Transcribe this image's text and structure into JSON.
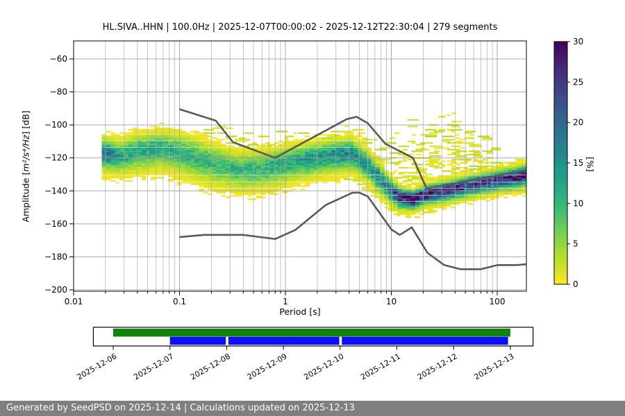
{
  "header": {
    "title": "HL.SIVA..HHN | 100.0Hz | 2025-12-07T00:00:02 - 2025-12-12T22:30:04 | 279 segments"
  },
  "footer": {
    "text": "Generated by SeedPSD on 2025-12-14 | Calculations updated on 2025-12-13",
    "bg": "#7f7f7f",
    "text_color": "#ffffff"
  },
  "axes": {
    "xlabel": "Period [s]",
    "ylabel_prefix": "Amplitude [",
    "ylabel_math": "m²/s⁴/Hz",
    "ylabel_suffix": "] [dB]",
    "x_ticks": [
      {
        "value": 0.01,
        "label": "0.01"
      },
      {
        "value": 0.1,
        "label": "0.1"
      },
      {
        "value": 1,
        "label": "1"
      },
      {
        "value": 10,
        "label": "10"
      },
      {
        "value": 100,
        "label": "100"
      }
    ],
    "y_ticks": [
      {
        "value": -60,
        "label": "−60"
      },
      {
        "value": -80,
        "label": "−80"
      },
      {
        "value": -100,
        "label": "−100"
      },
      {
        "value": -120,
        "label": "−120"
      },
      {
        "value": -140,
        "label": "−140"
      },
      {
        "value": -160,
        "label": "−160"
      },
      {
        "value": -180,
        "label": "−180"
      },
      {
        "value": -200,
        "label": "−200"
      }
    ],
    "xlim": [
      0.01,
      188
    ],
    "ylim": [
      -200,
      -49
    ]
  },
  "colorbar": {
    "label": "[%]",
    "tick_values": [
      0,
      5,
      10,
      15,
      20,
      25,
      30
    ],
    "tick_labels": [
      "0",
      "5",
      "10",
      "15",
      "20",
      "25",
      "30"
    ],
    "min": 0,
    "max": 30,
    "stops_top_to_bottom": [
      "#440154",
      "#482878",
      "#3e4989",
      "#31688e",
      "#26828e",
      "#1f9e89",
      "#35b779",
      "#6ece58",
      "#b5de2b",
      "#fde725"
    ]
  },
  "chart_data": {
    "type": "heatmap",
    "title": "PPSD probability histogram, HL.SIVA..HHN, 279 segments",
    "xlabel": "Period [s], log scale",
    "ylabel": "Amplitude [m2/s4/Hz] [dB]",
    "xlim": [
      0.01,
      188
    ],
    "ylim": [
      -200,
      -49
    ],
    "value_units": "% probability",
    "value_range_pct": [
      0,
      30
    ],
    "grid": true,
    "mode_spine": [
      {
        "lp": -1.733,
        "center": -116.5,
        "sigma": 4.2,
        "peak": 20
      },
      {
        "lp": -1.6,
        "center": -118.5,
        "sigma": 4.5,
        "peak": 13
      },
      {
        "lp": -1.4,
        "center": -115.5,
        "sigma": 5.0,
        "peak": 12
      },
      {
        "lp": -1.18,
        "center": -113.5,
        "sigma": 5.0,
        "peak": 12
      },
      {
        "lp": -0.95,
        "center": -117.5,
        "sigma": 5.5,
        "peak": 11
      },
      {
        "lp": -0.72,
        "center": -122.5,
        "sigma": 5.5,
        "peak": 10
      },
      {
        "lp": -0.45,
        "center": -127.0,
        "sigma": 5.2,
        "peak": 10
      },
      {
        "lp": -0.2,
        "center": -125.5,
        "sigma": 5.0,
        "peak": 11
      },
      {
        "lp": 0.1,
        "center": -121.5,
        "sigma": 4.8,
        "peak": 13
      },
      {
        "lp": 0.42,
        "center": -118.0,
        "sigma": 4.5,
        "peak": 15
      },
      {
        "lp": 0.6,
        "center": -117.0,
        "sigma": 4.5,
        "peak": 16
      },
      {
        "lp": 0.74,
        "center": -123.0,
        "sigma": 4.2,
        "peak": 15
      },
      {
        "lp": 0.95,
        "center": -137.5,
        "sigma": 3.6,
        "peak": 18
      },
      {
        "lp": 1.05,
        "center": -143.5,
        "sigma": 3.0,
        "peak": 26
      },
      {
        "lp": 1.18,
        "center": -145.0,
        "sigma": 2.7,
        "peak": 31
      },
      {
        "lp": 1.32,
        "center": -141.5,
        "sigma": 2.8,
        "peak": 28
      },
      {
        "lp": 1.5,
        "center": -139.5,
        "sigma": 2.9,
        "peak": 26
      },
      {
        "lp": 1.76,
        "center": -136.0,
        "sigma": 2.9,
        "peak": 26
      },
      {
        "lp": 2.0,
        "center": -133.0,
        "sigma": 2.9,
        "peak": 26
      },
      {
        "lp": 2.15,
        "center": -131.5,
        "sigma": 3.0,
        "peak": 26
      },
      {
        "lp": 2.272,
        "center": -130.0,
        "sigma": 3.2,
        "peak": 26
      }
    ],
    "outlier_bands": [
      {
        "lp0": -1.733,
        "lp1": -1.28,
        "lp_peak": -1.52,
        "top_db": -102,
        "drop": 8,
        "density": 0.3,
        "gap": 0
      },
      {
        "lp0": -0.98,
        "lp1": -0.3,
        "lp_peak": -0.63,
        "top_db": -100,
        "drop": 9,
        "density": 0.32,
        "gap": 1
      },
      {
        "lp0": -0.34,
        "lp1": 0.2,
        "lp_peak": -0.06,
        "top_db": -100.5,
        "drop": 8,
        "density": 0.32,
        "gap": 1
      },
      {
        "lp0": 0.22,
        "lp1": 0.9,
        "lp_peak": 0.56,
        "top_db": -100,
        "drop": 9,
        "density": 0.4,
        "gap": 0
      },
      {
        "lp0": 0.9,
        "lp1": 1.95,
        "lp_peak": 1.43,
        "top_db": -90.5,
        "drop": 22,
        "density": 0.42,
        "gap": 2
      },
      {
        "lp0": 1.92,
        "lp1": 2.272,
        "lp_peak": 2.15,
        "top_db": -119,
        "drop": 6,
        "density": 0.35,
        "gap": 0
      }
    ],
    "below_bands": [
      {
        "lp0": 0.55,
        "lp1": 1.4,
        "lp_peak": 1.05,
        "depth": 6,
        "density": 0.22
      }
    ],
    "noise_models": {
      "high": [
        [
          0.1,
          -90.5
        ],
        [
          0.22,
          -97.4
        ],
        [
          0.32,
          -110.5
        ],
        [
          0.8,
          -120.0
        ],
        [
          3.8,
          -96.5
        ],
        [
          4.7,
          -95.1
        ],
        [
          6.0,
          -99.0
        ],
        [
          8.8,
          -111.5
        ],
        [
          16.0,
          -120.0
        ],
        [
          21.5,
          -138.5
        ],
        [
          188,
          -127.5
        ]
      ],
      "low": [
        [
          0.1,
          -168.0
        ],
        [
          0.17,
          -166.7
        ],
        [
          0.4,
          -166.7
        ],
        [
          0.8,
          -169.2
        ],
        [
          1.24,
          -163.7
        ],
        [
          2.4,
          -148.6
        ],
        [
          4.3,
          -141.1
        ],
        [
          5.0,
          -141.1
        ],
        [
          6.0,
          -143.4
        ],
        [
          10.0,
          -163.4
        ],
        [
          12.0,
          -166.7
        ],
        [
          15.6,
          -162.1
        ],
        [
          21.9,
          -177.5
        ],
        [
          31.6,
          -185.0
        ],
        [
          45.0,
          -187.5
        ],
        [
          70.0,
          -187.5
        ],
        [
          101.0,
          -185.0
        ],
        [
          154.0,
          -185.0
        ],
        [
          188.0,
          -184.5
        ]
      ]
    },
    "line_color": "#5a5a5a"
  },
  "timeline": {
    "tick_labels": [
      "2025-12-06",
      "2025-12-07",
      "2025-12-08",
      "2025-12-09",
      "2025-12-10",
      "2025-12-11",
      "2025-12-12",
      "2025-12-13"
    ],
    "box_days": [
      -0.35,
      7.4
    ],
    "green_span_days": [
      0,
      7
    ],
    "blue_segments_days": [
      [
        1.0,
        1.985
      ],
      [
        2.03,
        3.985
      ],
      [
        4.03,
        6.96
      ]
    ],
    "green_color": "#0e840e",
    "blue_color": "#0d0dff"
  }
}
